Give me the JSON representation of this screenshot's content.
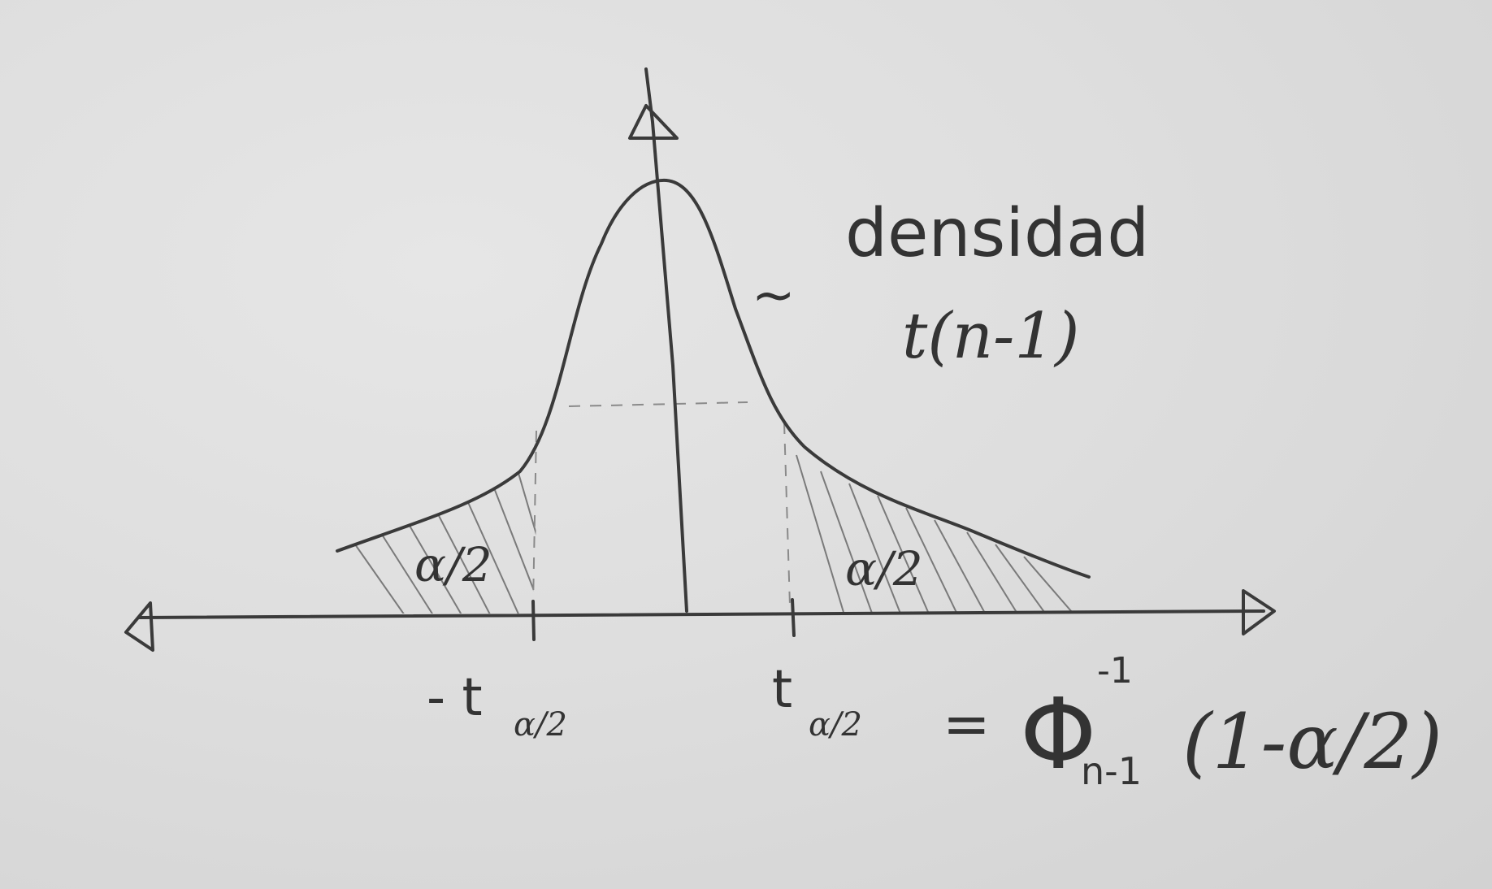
{
  "labels": {
    "density_line1": "densidad",
    "density_line2": "t(n-1)",
    "tilde": "~",
    "left_area": "α/2",
    "right_area": "α/2",
    "neg_critical": "- t",
    "neg_critical_sub": "α/2",
    "pos_critical": "t",
    "pos_critical_sub": "α/2",
    "equals": "=",
    "phi": "Φ",
    "phi_sup": "-1",
    "phi_sub": "n-1",
    "phi_arg": "(1-α/2)"
  },
  "colors": {
    "ink": "#3a3a3a",
    "paper": "#dedede"
  }
}
